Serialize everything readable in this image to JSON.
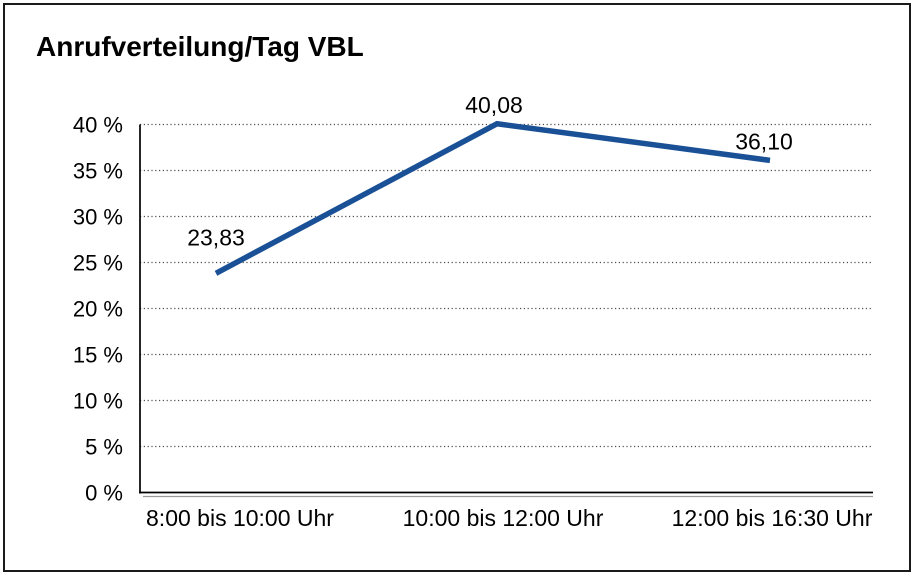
{
  "title": "Anrufverteilung/Tag VBL",
  "chart_data": {
    "type": "line",
    "title": "Anrufverteilung/Tag VBL",
    "categories": [
      "8:00 bis 10:00 Uhr",
      "10:00 bis 12:00 Uhr",
      "12:00 bis 16:30 Uhr"
    ],
    "series": [
      {
        "name": "Anrufverteilung/Tag VBL",
        "values": [
          23.83,
          40.08,
          36.1
        ],
        "value_labels": [
          "23,83",
          "40,08",
          "36,10"
        ],
        "color": "#1a5096"
      }
    ],
    "xlabel": "",
    "ylabel": "",
    "ylim": [
      0,
      40
    ],
    "ytick_step": 5,
    "ytick_suffix": " %",
    "ytick_labels": [
      "0 %",
      "5 %",
      "10 %",
      "15 %",
      "20 %",
      "25 %",
      "30 %",
      "35 %",
      "40 %"
    ],
    "grid": "horizontal-dotted",
    "legend": "none",
    "colors": {
      "line": "#1a5096",
      "axis": "#000000",
      "axis_shadow": "#999999",
      "grid": "#4d4d4d",
      "text": "#000000",
      "background": "#ffffff",
      "frame_border": "#1a1a1a"
    }
  }
}
